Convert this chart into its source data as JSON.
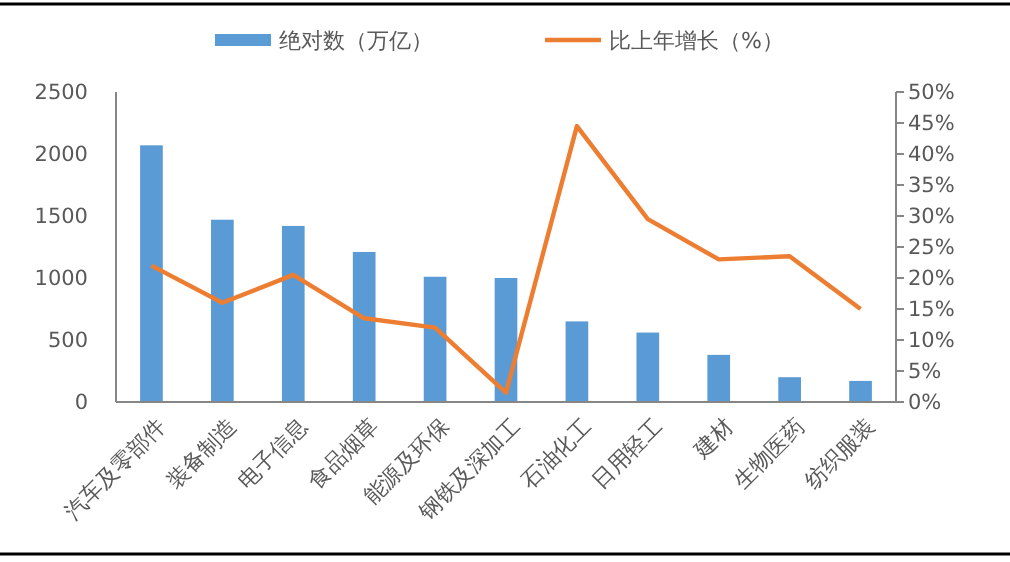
{
  "chart_data": {
    "type": "bar",
    "categories": [
      "汽车及零部件",
      "装备制造",
      "电子信息",
      "食品烟草",
      "能源及环保",
      "钢铁及深加工",
      "石油化工",
      "日用轻工",
      "建材",
      "生物医药",
      "纺织服装"
    ],
    "series": [
      {
        "name": "绝对数（万亿）",
        "color": "#5b9bd5",
        "values": [
          2070,
          1470,
          1420,
          1210,
          1010,
          1000,
          650,
          560,
          380,
          200,
          170
        ]
      },
      {
        "name": "比上年增长（%）",
        "type": "line",
        "axis": "y2",
        "color": "#ed7d31",
        "values": [
          22,
          16,
          20.5,
          13.5,
          12,
          1.5,
          44.5,
          29.5,
          23,
          23.5,
          15
        ]
      }
    ],
    "ylim": [
      0,
      2500
    ],
    "yticks": [
      0,
      500,
      1000,
      1500,
      2000,
      2500
    ],
    "y2lim": [
      0,
      50
    ],
    "y2ticks": [
      {
        "value": 0,
        "label": "0%"
      },
      {
        "value": 5,
        "label": "5%"
      },
      {
        "value": 10,
        "label": "10%"
      },
      {
        "value": 15,
        "label": "15%"
      },
      {
        "value": 20,
        "label": "20%"
      },
      {
        "value": 25,
        "label": "25%"
      },
      {
        "value": 30,
        "label": "30%"
      },
      {
        "value": 35,
        "label": "35%"
      },
      {
        "value": 40,
        "label": "40%"
      },
      {
        "value": 45,
        "label": "45%"
      },
      {
        "value": 50,
        "label": "50%"
      }
    ],
    "legend": "top",
    "grid": false,
    "marker": "none",
    "line_style": "solid"
  }
}
